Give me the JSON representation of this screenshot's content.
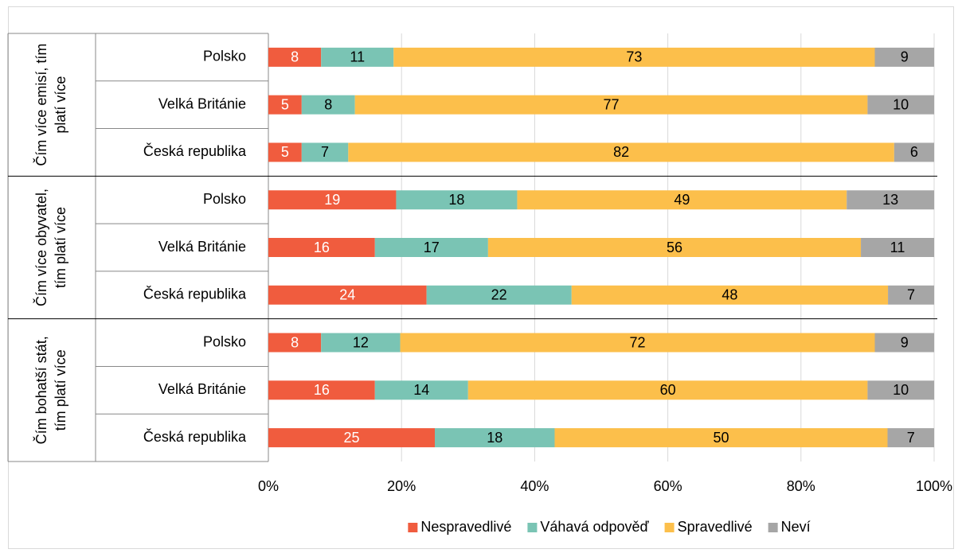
{
  "chart_data": {
    "type": "bar",
    "orientation": "horizontal",
    "stacked": "percent",
    "categories": [
      "Polsko",
      "Velká Británie",
      "Česká republika",
      "Polsko",
      "Velká Británie",
      "Česká republika",
      "Polsko",
      "Velká Británie",
      "Česká republika"
    ],
    "groups": [
      {
        "name": "Čím více emisí, tím platí více",
        "span": 3
      },
      {
        "name": "Čím více obyvatel, tím platí více",
        "span": 3
      },
      {
        "name": "Čím bohatší stát, tím platí více",
        "span": 3
      }
    ],
    "series": [
      {
        "name": "Nespravedlivé",
        "color": "#f05c3e",
        "label_color": "#ffffff",
        "values": [
          8,
          5,
          5,
          19,
          16,
          24,
          8,
          16,
          25
        ]
      },
      {
        "name": "Váhavá odpověď",
        "color": "#7ac4b4",
        "label_color": "#000000",
        "values": [
          11,
          8,
          7,
          18,
          17,
          22,
          12,
          14,
          18
        ]
      },
      {
        "name": "Spravedlivé",
        "color": "#fcbf4b",
        "label_color": "#000000",
        "values": [
          73,
          77,
          82,
          49,
          56,
          48,
          72,
          60,
          50
        ]
      },
      {
        "name": "Neví",
        "color": "#a6a6a6",
        "label_color": "#000000",
        "values": [
          9,
          10,
          6,
          13,
          11,
          7,
          9,
          10,
          7
        ]
      }
    ],
    "xlim": [
      0,
      100
    ],
    "xticks": [
      {
        "value": 0,
        "label": "0%"
      },
      {
        "value": 20,
        "label": "20%"
      },
      {
        "value": 40,
        "label": "40%"
      },
      {
        "value": 60,
        "label": "60%"
      },
      {
        "value": 80,
        "label": "80%"
      },
      {
        "value": 100,
        "label": "100%"
      }
    ],
    "grid": true,
    "legend": "bottom"
  }
}
